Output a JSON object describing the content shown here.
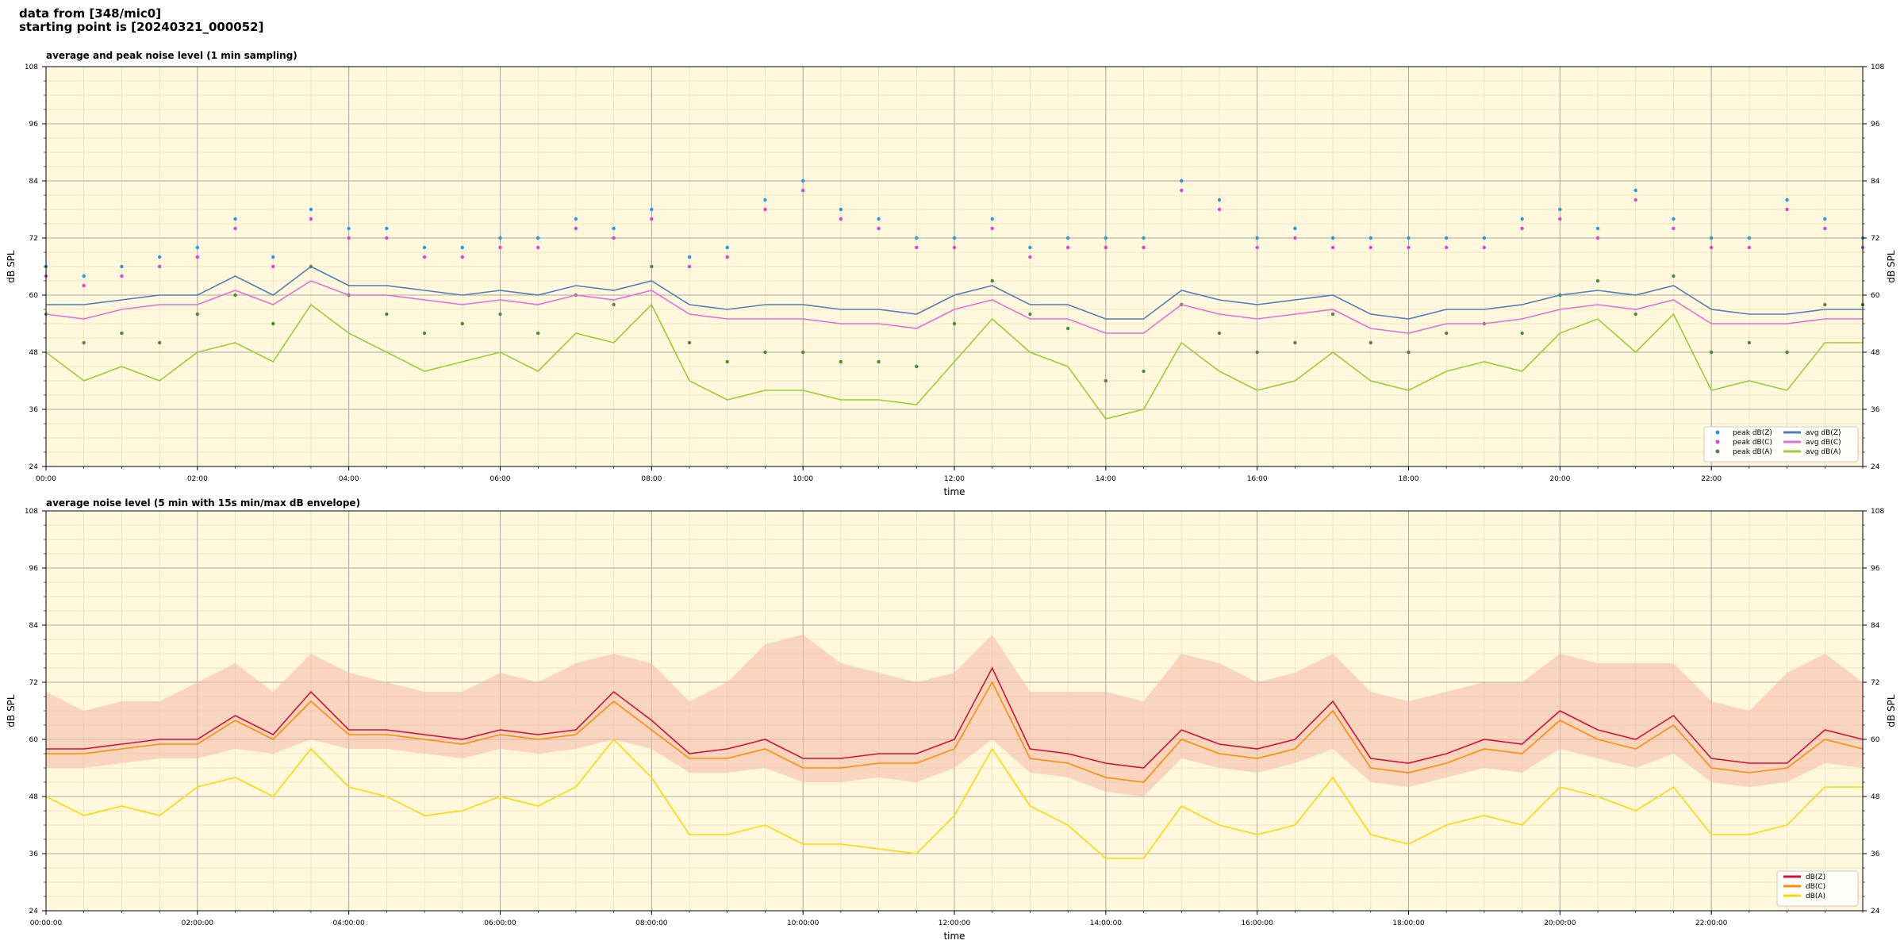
{
  "header": {
    "line1": "data from [348/mic0]",
    "line2": "starting point is [20240321_000052]"
  },
  "colors": {
    "background": "#fff8dc",
    "peak_z": "#1f9be3",
    "peak_c": "#e040d8",
    "peak_a": "#4a8a3c",
    "avg_z": "#4f7fb8",
    "avg_c": "#e46fd4",
    "avg_a": "#9acd32",
    "db_z": "#d0103a",
    "db_c": "#ff8c00",
    "db_a": "#ffd700",
    "envelope": "#f4b8a8"
  },
  "chart_data": [
    {
      "type": "line",
      "title": "average and peak noise level (1 min sampling)",
      "xlabel": "time",
      "ylabel": "dB SPL",
      "ylabel_right": "dB SPL",
      "xlim_hours": [
        0,
        24
      ],
      "ylim": [
        24,
        108
      ],
      "x_ticks": [
        "00:00",
        "02:00",
        "04:00",
        "06:00",
        "08:00",
        "10:00",
        "12:00",
        "14:00",
        "16:00",
        "18:00",
        "20:00",
        "22:00"
      ],
      "y_ticks": [
        24,
        36,
        48,
        60,
        72,
        84,
        96,
        108
      ],
      "grid": true,
      "legend_position": "lower-right",
      "legend": [
        "peak dB(Z)",
        "peak dB(C)",
        "peak dB(A)",
        "avg dB(Z)",
        "avg dB(C)",
        "avg dB(A)"
      ],
      "x_hours": [
        0,
        0.5,
        1,
        1.5,
        2,
        2.5,
        3,
        3.5,
        4,
        4.5,
        5,
        5.5,
        6,
        6.5,
        7,
        7.5,
        8,
        8.5,
        9,
        9.5,
        10,
        10.5,
        11,
        11.5,
        12,
        12.5,
        13,
        13.5,
        14,
        14.5,
        15,
        15.5,
        16,
        16.5,
        17,
        17.5,
        18,
        18.5,
        19,
        19.5,
        20,
        20.5,
        21,
        21.5,
        22,
        22.5,
        23,
        23.5,
        24
      ],
      "series": [
        {
          "name": "avg dB(Z)",
          "kind": "line",
          "values": [
            58,
            58,
            59,
            60,
            60,
            64,
            60,
            66,
            62,
            62,
            61,
            60,
            61,
            60,
            62,
            61,
            63,
            58,
            57,
            58,
            58,
            57,
            57,
            56,
            60,
            62,
            58,
            58,
            55,
            55,
            61,
            59,
            58,
            59,
            60,
            56,
            55,
            57,
            57,
            58,
            60,
            61,
            60,
            62,
            57,
            56,
            56,
            57,
            57
          ]
        },
        {
          "name": "avg dB(C)",
          "kind": "line",
          "values": [
            56,
            55,
            57,
            58,
            58,
            61,
            58,
            63,
            60,
            60,
            59,
            58,
            59,
            58,
            60,
            59,
            61,
            56,
            55,
            55,
            55,
            54,
            54,
            53,
            57,
            59,
            55,
            55,
            52,
            52,
            58,
            56,
            55,
            56,
            57,
            53,
            52,
            54,
            54,
            55,
            57,
            58,
            57,
            59,
            54,
            54,
            54,
            55,
            55
          ]
        },
        {
          "name": "avg dB(A)",
          "kind": "line",
          "values": [
            48,
            42,
            45,
            42,
            48,
            50,
            46,
            58,
            52,
            48,
            44,
            46,
            48,
            44,
            52,
            50,
            58,
            42,
            38,
            40,
            40,
            38,
            38,
            37,
            46,
            55,
            48,
            45,
            34,
            36,
            50,
            44,
            40,
            42,
            48,
            42,
            40,
            44,
            46,
            44,
            52,
            55,
            48,
            56,
            40,
            42,
            40,
            50,
            50
          ]
        },
        {
          "name": "peak dB(Z)",
          "kind": "scatter",
          "values": [
            66,
            64,
            66,
            68,
            70,
            76,
            68,
            78,
            74,
            74,
            70,
            70,
            72,
            72,
            76,
            74,
            78,
            68,
            70,
            80,
            84,
            78,
            76,
            72,
            72,
            76,
            70,
            72,
            72,
            72,
            84,
            80,
            72,
            74,
            72,
            72,
            72,
            72,
            72,
            76,
            78,
            74,
            82,
            76,
            72,
            72,
            80,
            76,
            72
          ]
        },
        {
          "name": "peak dB(C)",
          "kind": "scatter",
          "values": [
            64,
            62,
            64,
            66,
            68,
            74,
            66,
            76,
            72,
            72,
            68,
            68,
            70,
            70,
            74,
            72,
            76,
            66,
            68,
            78,
            82,
            76,
            74,
            70,
            70,
            74,
            68,
            70,
            70,
            70,
            82,
            78,
            70,
            72,
            70,
            70,
            70,
            70,
            70,
            74,
            76,
            72,
            80,
            74,
            70,
            70,
            78,
            74,
            70
          ]
        },
        {
          "name": "peak dB(A)",
          "kind": "scatter",
          "values": [
            56,
            50,
            52,
            50,
            56,
            60,
            54,
            66,
            60,
            56,
            52,
            54,
            56,
            52,
            60,
            58,
            66,
            50,
            46,
            48,
            48,
            46,
            46,
            45,
            54,
            63,
            56,
            53,
            42,
            44,
            58,
            52,
            48,
            50,
            56,
            50,
            48,
            52,
            54,
            52,
            60,
            63,
            56,
            64,
            48,
            50,
            48,
            58,
            58
          ]
        }
      ]
    },
    {
      "type": "line",
      "title": "average noise level (5 min with 15s min/max dB envelope)",
      "xlabel": "time",
      "ylabel": "dB SPL",
      "ylabel_right": "dB SPL",
      "xlim_hours": [
        0,
        24
      ],
      "ylim": [
        24,
        108
      ],
      "x_ticks": [
        "00:00:00",
        "02:00:00",
        "04:00:00",
        "06:00:00",
        "08:00:00",
        "10:00:00",
        "12:00:00",
        "14:00:00",
        "16:00:00",
        "18:00:00",
        "20:00:00",
        "22:00:00"
      ],
      "y_ticks": [
        24,
        36,
        48,
        60,
        72,
        84,
        96,
        108
      ],
      "grid": true,
      "legend_position": "lower-right",
      "legend": [
        "dB(Z)",
        "dB(C)",
        "dB(A)"
      ],
      "x_hours": [
        0,
        0.5,
        1,
        1.5,
        2,
        2.5,
        3,
        3.5,
        4,
        4.5,
        5,
        5.5,
        6,
        6.5,
        7,
        7.5,
        8,
        8.5,
        9,
        9.5,
        10,
        10.5,
        11,
        11.5,
        12,
        12.5,
        13,
        13.5,
        14,
        14.5,
        15,
        15.5,
        16,
        16.5,
        17,
        17.5,
        18,
        18.5,
        19,
        19.5,
        20,
        20.5,
        21,
        21.5,
        22,
        22.5,
        23,
        23.5,
        24
      ],
      "series": [
        {
          "name": "dB(Z)",
          "kind": "line",
          "values": [
            58,
            58,
            59,
            60,
            60,
            65,
            61,
            70,
            62,
            62,
            61,
            60,
            62,
            61,
            62,
            70,
            64,
            57,
            58,
            60,
            56,
            56,
            57,
            57,
            60,
            75,
            58,
            57,
            55,
            54,
            62,
            59,
            58,
            60,
            68,
            56,
            55,
            57,
            60,
            59,
            66,
            62,
            60,
            65,
            56,
            55,
            55,
            62,
            60
          ]
        },
        {
          "name": "dB(C)",
          "kind": "line",
          "values": [
            57,
            57,
            58,
            59,
            59,
            64,
            60,
            68,
            61,
            61,
            60,
            59,
            61,
            60,
            61,
            68,
            62,
            56,
            56,
            58,
            54,
            54,
            55,
            55,
            58,
            72,
            56,
            55,
            52,
            51,
            60,
            57,
            56,
            58,
            66,
            54,
            53,
            55,
            58,
            57,
            64,
            60,
            58,
            63,
            54,
            53,
            54,
            60,
            58
          ]
        },
        {
          "name": "dB(A)",
          "kind": "line",
          "values": [
            48,
            44,
            46,
            44,
            50,
            52,
            48,
            58,
            50,
            48,
            44,
            45,
            48,
            46,
            50,
            60,
            52,
            40,
            40,
            42,
            38,
            38,
            37,
            36,
            44,
            58,
            46,
            42,
            35,
            35,
            46,
            42,
            40,
            42,
            52,
            40,
            38,
            42,
            44,
            42,
            50,
            48,
            45,
            50,
            40,
            40,
            42,
            50,
            50
          ]
        },
        {
          "name": "envelope max",
          "kind": "band-top",
          "values": [
            70,
            66,
            68,
            68,
            72,
            76,
            70,
            78,
            74,
            72,
            70,
            70,
            74,
            72,
            76,
            78,
            76,
            68,
            72,
            80,
            82,
            76,
            74,
            72,
            74,
            82,
            70,
            70,
            70,
            68,
            78,
            76,
            72,
            74,
            78,
            70,
            68,
            70,
            72,
            72,
            78,
            76,
            76,
            76,
            68,
            66,
            74,
            78,
            72
          ]
        },
        {
          "name": "envelope min",
          "kind": "band-bottom",
          "values": [
            54,
            54,
            55,
            56,
            56,
            58,
            57,
            60,
            58,
            58,
            57,
            56,
            58,
            57,
            58,
            60,
            58,
            53,
            53,
            54,
            51,
            51,
            52,
            51,
            54,
            60,
            53,
            52,
            49,
            48,
            56,
            54,
            53,
            55,
            58,
            51,
            50,
            52,
            54,
            53,
            58,
            56,
            54,
            57,
            51,
            50,
            51,
            55,
            54
          ]
        }
      ]
    }
  ]
}
